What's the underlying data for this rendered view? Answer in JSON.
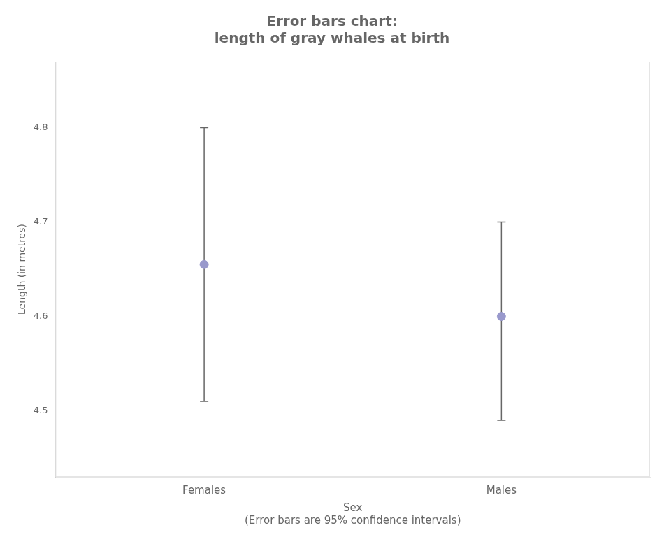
{
  "chart_data": {
    "type": "errorbar",
    "title": "Error bars chart:\nlength of gray whales at birth",
    "xlabel": "Sex\n(Error bars are 95% confidence intervals)",
    "ylabel": "Length (in metres)",
    "categories": [
      "Females",
      "Males"
    ],
    "values": [
      4.655,
      4.6
    ],
    "ci_lower": [
      4.51,
      4.49
    ],
    "ci_upper": [
      4.8,
      4.7
    ],
    "color": "#9999cc",
    "ylim": [
      4.43,
      4.87
    ],
    "yticks": [
      4.5,
      4.6,
      4.7,
      4.8
    ],
    "grid": false
  }
}
